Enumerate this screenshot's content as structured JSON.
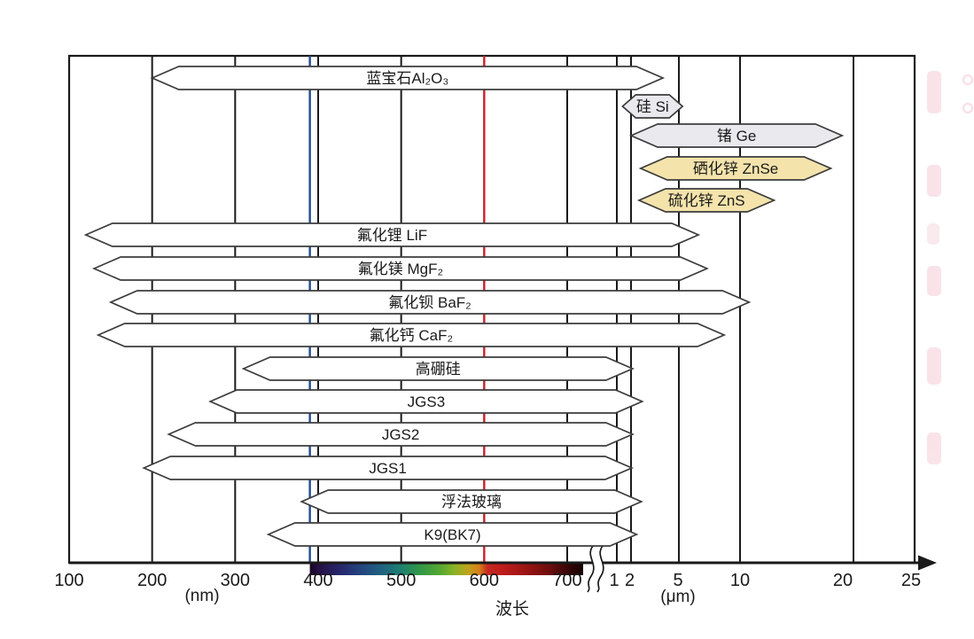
{
  "page": {
    "background": "#ffffff"
  },
  "axis": {
    "nm_caption": "(nm)",
    "um_caption": "(μm)",
    "title": "波长"
  },
  "colors": {
    "white": "#ffffff",
    "gray": "#e9e9ee",
    "tan": "#f4e3ab",
    "border": "#3c3c3c",
    "grid": "#1a1a1a",
    "text": "#1a1a1a",
    "blue_line": "#1f4c8f",
    "red_line": "#c9202a"
  },
  "chart_data": {
    "type": "bar",
    "orientation": "horizontal-range",
    "title": "",
    "xlabel": "波长",
    "x_units": [
      "nm",
      "μm"
    ],
    "nm_ticks": [
      100,
      200,
      300,
      400,
      500,
      600,
      700
    ],
    "um_ticks": [
      1,
      2,
      5,
      10,
      20,
      25
    ],
    "axis_break": "between 700 nm and 1 μm",
    "xlim_um": [
      0.1,
      25
    ],
    "grid": true,
    "series": [
      {
        "label": "蓝宝石Al₂O₃",
        "range_um": [
          0.2,
          4.0
        ],
        "fill": "white"
      },
      {
        "label": "硅 Si",
        "range_um": [
          1.4,
          5.3
        ],
        "fill": "gray"
      },
      {
        "label": "锗 Ge",
        "range_um": [
          2.0,
          19.0
        ],
        "fill": "gray"
      },
      {
        "label": "硒化锌 ZnSe",
        "range_um": [
          2.6,
          18.0
        ],
        "fill": "tan"
      },
      {
        "label": "硫化锌 ZnS",
        "range_um": [
          2.5,
          13.0
        ],
        "fill": "tan"
      },
      {
        "label": "氟化锂 LiF",
        "range_um": [
          0.12,
          6.6
        ],
        "fill": "white"
      },
      {
        "label": "氟化镁 MgF₂",
        "range_um": [
          0.13,
          7.3
        ],
        "fill": "white"
      },
      {
        "label": "氟化钡 BaF₂",
        "range_um": [
          0.15,
          10.8
        ],
        "fill": "white"
      },
      {
        "label": "氟化钙 CaF₂",
        "range_um": [
          0.135,
          8.7
        ],
        "fill": "white"
      },
      {
        "label": "高硼硅",
        "range_um": [
          0.31,
          2.1
        ],
        "fill": "white"
      },
      {
        "label": "JGS3",
        "range_um": [
          0.27,
          2.7
        ],
        "fill": "white"
      },
      {
        "label": "JGS2",
        "range_um": [
          0.22,
          2.1
        ],
        "fill": "white"
      },
      {
        "label": "JGS1",
        "range_um": [
          0.19,
          2.05
        ],
        "fill": "white"
      },
      {
        "label": "浮法玻璃",
        "range_um": [
          0.38,
          2.65
        ],
        "fill": "white"
      },
      {
        "label": "K9(BK7)",
        "range_um": [
          0.34,
          2.35
        ],
        "fill": "white"
      }
    ],
    "reference_lines": [
      {
        "wavelength_um": 0.39,
        "color": "#1f4c8f"
      },
      {
        "wavelength_um": 0.6,
        "color": "#c9202a"
      }
    ],
    "spectrum_bar_nm": [
      390,
      720
    ]
  }
}
